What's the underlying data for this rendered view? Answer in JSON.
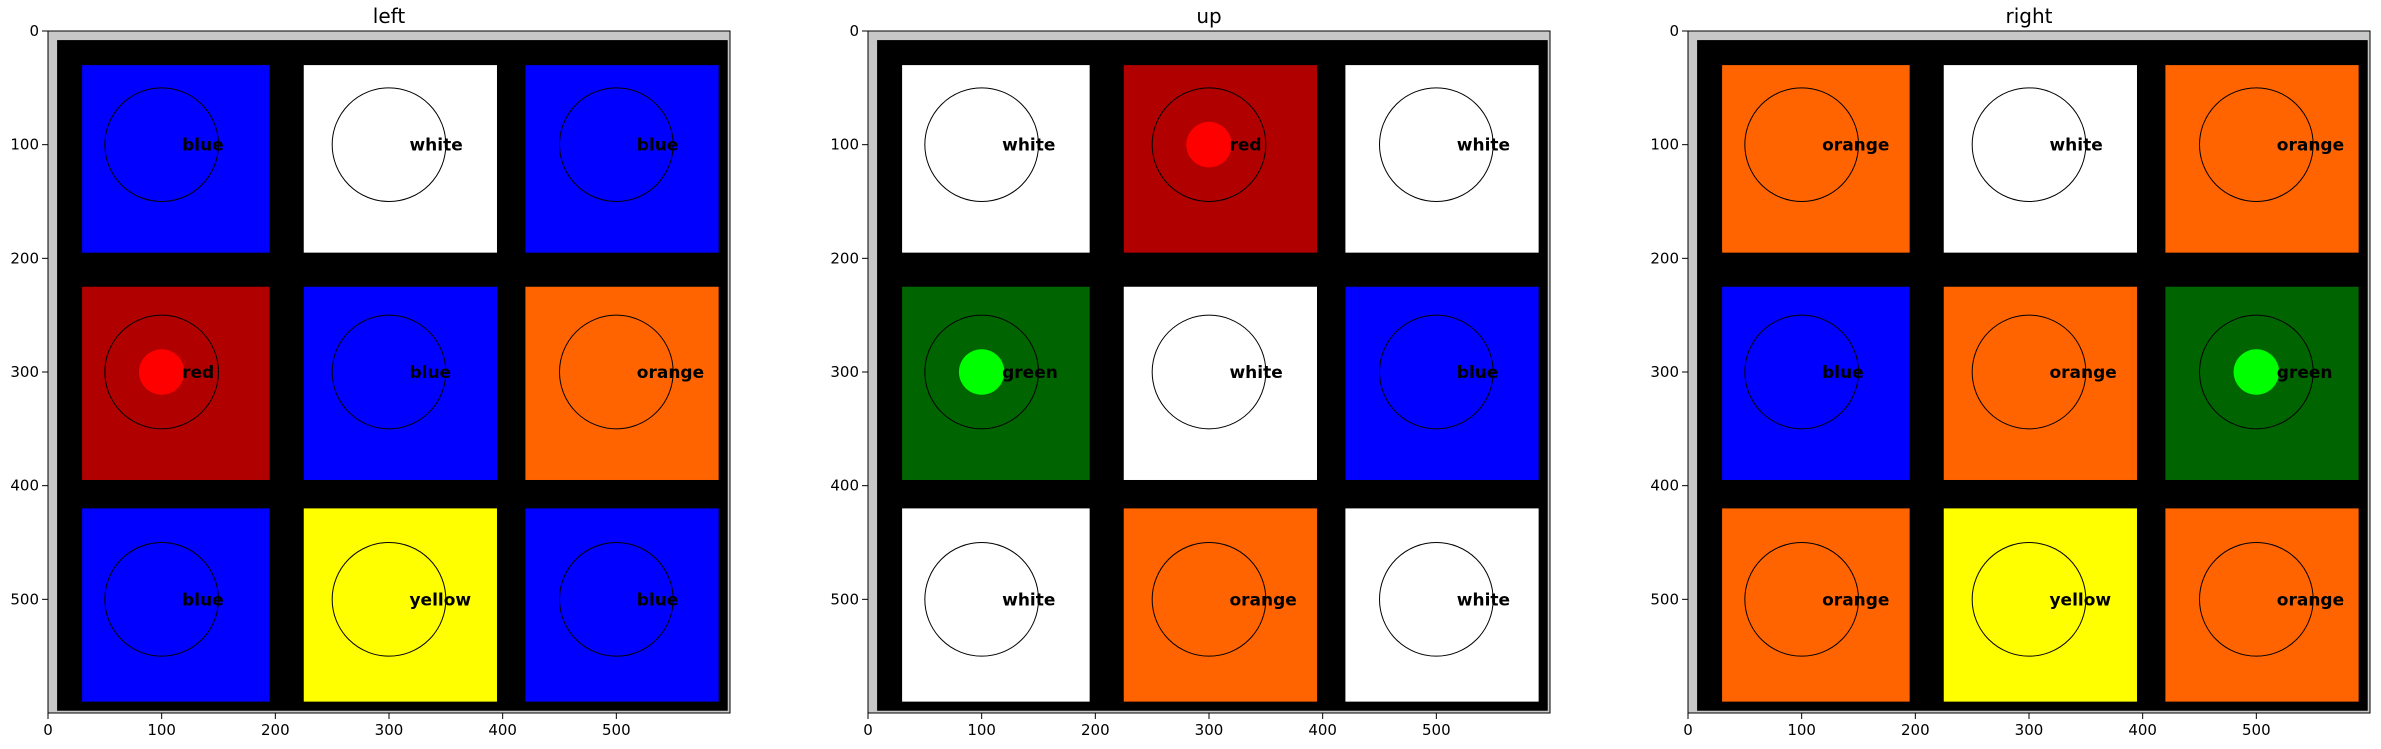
{
  "chart_data": {
    "type": "heatmap",
    "panels": [
      {
        "title": "left",
        "xticks": [
          0,
          100,
          200,
          300,
          400,
          500
        ],
        "yticks": [
          0,
          100,
          200,
          300,
          400,
          500
        ],
        "xlim": [
          0,
          600
        ],
        "ylim": [
          600,
          0
        ],
        "cells": [
          {
            "row": 0,
            "col": 0,
            "label": "blue",
            "color": "#0000ff",
            "highlight": null
          },
          {
            "row": 0,
            "col": 1,
            "label": "white",
            "color": "#ffffff",
            "highlight": null
          },
          {
            "row": 0,
            "col": 2,
            "label": "blue",
            "color": "#0000ff",
            "highlight": null
          },
          {
            "row": 1,
            "col": 0,
            "label": "red",
            "color": "#b00000",
            "highlight": "#ff0000"
          },
          {
            "row": 1,
            "col": 1,
            "label": "blue",
            "color": "#0000ff",
            "highlight": null
          },
          {
            "row": 1,
            "col": 2,
            "label": "orange",
            "color": "#ff6400",
            "highlight": null
          },
          {
            "row": 2,
            "col": 0,
            "label": "blue",
            "color": "#0000ff",
            "highlight": null
          },
          {
            "row": 2,
            "col": 1,
            "label": "yellow",
            "color": "#ffff00",
            "highlight": null
          },
          {
            "row": 2,
            "col": 2,
            "label": "blue",
            "color": "#0000ff",
            "highlight": null
          }
        ]
      },
      {
        "title": "up",
        "xticks": [
          0,
          100,
          200,
          300,
          400,
          500
        ],
        "yticks": [
          0,
          100,
          200,
          300,
          400,
          500
        ],
        "xlim": [
          0,
          600
        ],
        "ylim": [
          600,
          0
        ],
        "cells": [
          {
            "row": 0,
            "col": 0,
            "label": "white",
            "color": "#ffffff",
            "highlight": null
          },
          {
            "row": 0,
            "col": 1,
            "label": "red",
            "color": "#b00000",
            "highlight": "#ff0000"
          },
          {
            "row": 0,
            "col": 2,
            "label": "white",
            "color": "#ffffff",
            "highlight": null
          },
          {
            "row": 1,
            "col": 0,
            "label": "green",
            "color": "#006400",
            "highlight": "#00ff00"
          },
          {
            "row": 1,
            "col": 1,
            "label": "white",
            "color": "#ffffff",
            "highlight": null
          },
          {
            "row": 1,
            "col": 2,
            "label": "blue",
            "color": "#0000ff",
            "highlight": null
          },
          {
            "row": 2,
            "col": 0,
            "label": "white",
            "color": "#ffffff",
            "highlight": null
          },
          {
            "row": 2,
            "col": 1,
            "label": "orange",
            "color": "#ff6400",
            "highlight": null
          },
          {
            "row": 2,
            "col": 2,
            "label": "white",
            "color": "#ffffff",
            "highlight": null
          }
        ]
      },
      {
        "title": "right",
        "xticks": [
          0,
          100,
          200,
          300,
          400,
          500
        ],
        "yticks": [
          0,
          100,
          200,
          300,
          400,
          500
        ],
        "xlim": [
          0,
          600
        ],
        "ylim": [
          600,
          0
        ],
        "cells": [
          {
            "row": 0,
            "col": 0,
            "label": "orange",
            "color": "#ff6400",
            "highlight": null
          },
          {
            "row": 0,
            "col": 1,
            "label": "white",
            "color": "#ffffff",
            "highlight": null
          },
          {
            "row": 0,
            "col": 2,
            "label": "orange",
            "color": "#ff6400",
            "highlight": null
          },
          {
            "row": 1,
            "col": 0,
            "label": "blue",
            "color": "#0000ff",
            "highlight": null
          },
          {
            "row": 1,
            "col": 1,
            "label": "orange",
            "color": "#ff6400",
            "highlight": null
          },
          {
            "row": 1,
            "col": 2,
            "label": "green",
            "color": "#006400",
            "highlight": "#00ff00"
          },
          {
            "row": 2,
            "col": 0,
            "label": "orange",
            "color": "#ff6400",
            "highlight": null
          },
          {
            "row": 2,
            "col": 1,
            "label": "yellow",
            "color": "#ffff00",
            "highlight": null
          },
          {
            "row": 2,
            "col": 2,
            "label": "orange",
            "color": "#ff6400",
            "highlight": null
          }
        ]
      }
    ],
    "grid": false,
    "legend": "none"
  },
  "colors": {
    "background": "#ffffff",
    "cube_border": "#000000",
    "margin_gray": "#c8c8c8",
    "circle_stroke": "#000000"
  }
}
